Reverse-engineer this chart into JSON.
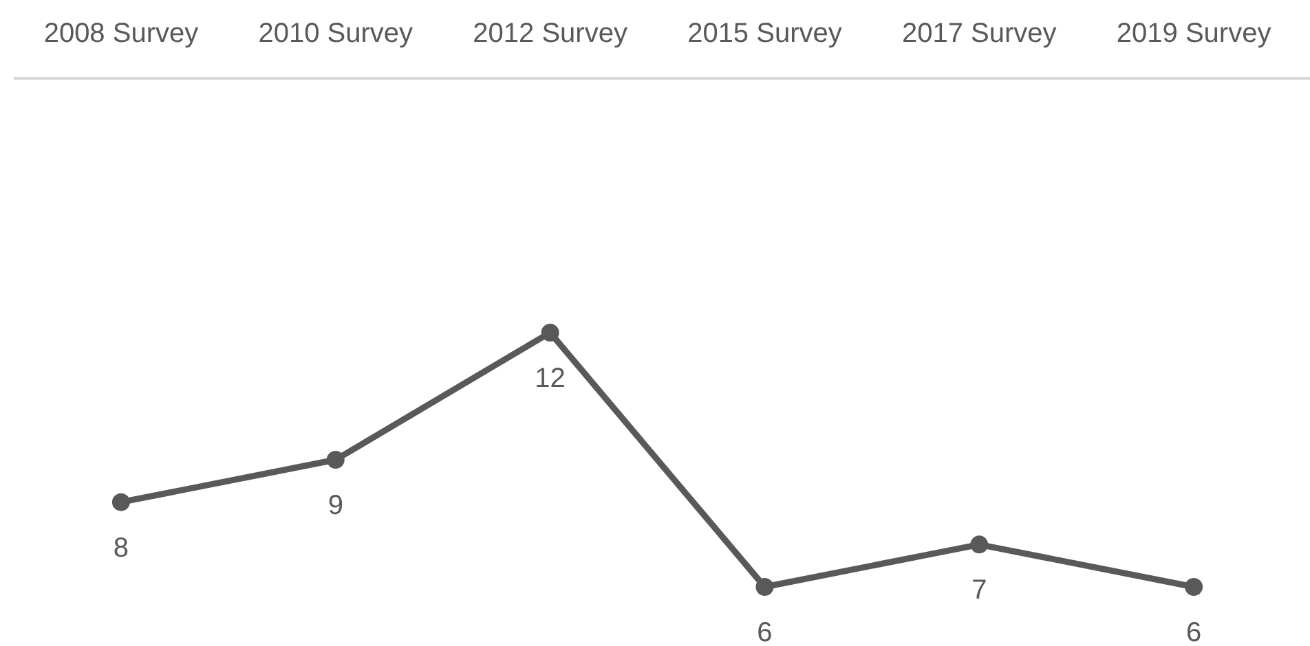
{
  "chart_data": {
    "type": "line",
    "categories": [
      "2008 Survey",
      "2010 Survey",
      "2012 Survey",
      "2015 Survey",
      "2017 Survey",
      "2019 Survey"
    ],
    "series": [
      {
        "color": "#595959",
        "values": [
          8,
          9,
          12,
          6,
          7,
          6
        ]
      }
    ],
    "tick_labels": "x",
    "data_labels": true,
    "marker": "circle",
    "line_style": "solid"
  }
}
